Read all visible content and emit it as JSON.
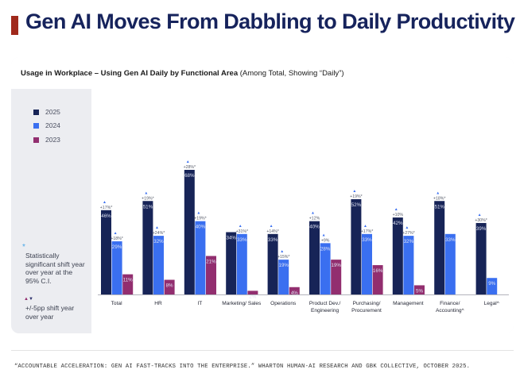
{
  "title": "Gen AI Moves From Dabbling to Daily Productivity",
  "subtitle_bold": "Usage in Workplace – Using Gen AI Daily by Functional Area",
  "subtitle_rest": " (Among Total, Showing “Daily”)",
  "legend": [
    {
      "label": "2025",
      "color": "#172457"
    },
    {
      "label": "2024",
      "color": "#3a6ff0"
    },
    {
      "label": "2023",
      "color": "#922e6f"
    }
  ],
  "note_significant_icon": "*",
  "note_significant": [
    "Statistically",
    "significant shift year",
    "over year at the",
    "95% C.I."
  ],
  "note_shift_icon": "▲▼",
  "note_shift": [
    "+/-5pp shift year",
    "over year"
  ],
  "footer": "“ACCOUNTABLE ACCELERATION: GEN AI FAST-TRACKS INTO THE ENTERPRISE.” WHARTON HUMAN-AI RESEARCH AND GBK COLLECTIVE, OCTOBER 2025.",
  "chart_data": {
    "type": "bar",
    "ylim": [
      0,
      70
    ],
    "legend_position": "top-left",
    "categories": [
      [
        "Total"
      ],
      [
        "HR"
      ],
      [
        "IT"
      ],
      [
        "Marketing/ Sales"
      ],
      [
        "Operations"
      ],
      [
        "Product Dev./",
        "Engineering"
      ],
      [
        "Purchasing/",
        "Procurement"
      ],
      [
        "Management"
      ],
      [
        "Finance/",
        "Accounting^"
      ],
      [
        "Legal^"
      ]
    ],
    "series": [
      {
        "name": "2025",
        "color": "#172457",
        "values": [
          46,
          51,
          68,
          34,
          33,
          40,
          52,
          42,
          51,
          39
        ],
        "labels": [
          "46%",
          "51%",
          "68%",
          "34%",
          "33%",
          "40%",
          "52%",
          "42%",
          "51%",
          "39%"
        ],
        "shifts": [
          "+17%*",
          "+19%*",
          "+28%*",
          "",
          "+14%*",
          "+12%",
          "+19%*",
          "+10%",
          "+18%*",
          "+30%*"
        ]
      },
      {
        "name": "2024",
        "color": "#3a6ff0",
        "values": [
          29,
          32,
          40,
          33,
          19,
          28,
          33,
          32,
          33,
          9
        ],
        "labels": [
          "29%",
          "32%",
          "40%",
          "33%",
          "19%",
          "28%",
          "33%",
          "32%",
          "33%",
          "9%"
        ],
        "shifts": [
          "+18%*",
          "+24%*",
          "+19%*",
          "+31%*",
          "+15%*",
          "+9%",
          "+17%*",
          "+27%*",
          "",
          ""
        ]
      },
      {
        "name": "2023",
        "color": "#922e6f",
        "values": [
          11,
          8,
          21,
          2,
          4,
          19,
          16,
          5,
          null,
          null
        ],
        "labels": [
          "11%",
          "8%",
          "21%",
          "2%",
          "4%",
          "19%",
          "16%",
          "5%",
          "",
          ""
        ],
        "shifts": [
          "",
          "",
          "",
          "",
          "",
          "",
          "",
          "",
          "",
          ""
        ]
      }
    ]
  }
}
